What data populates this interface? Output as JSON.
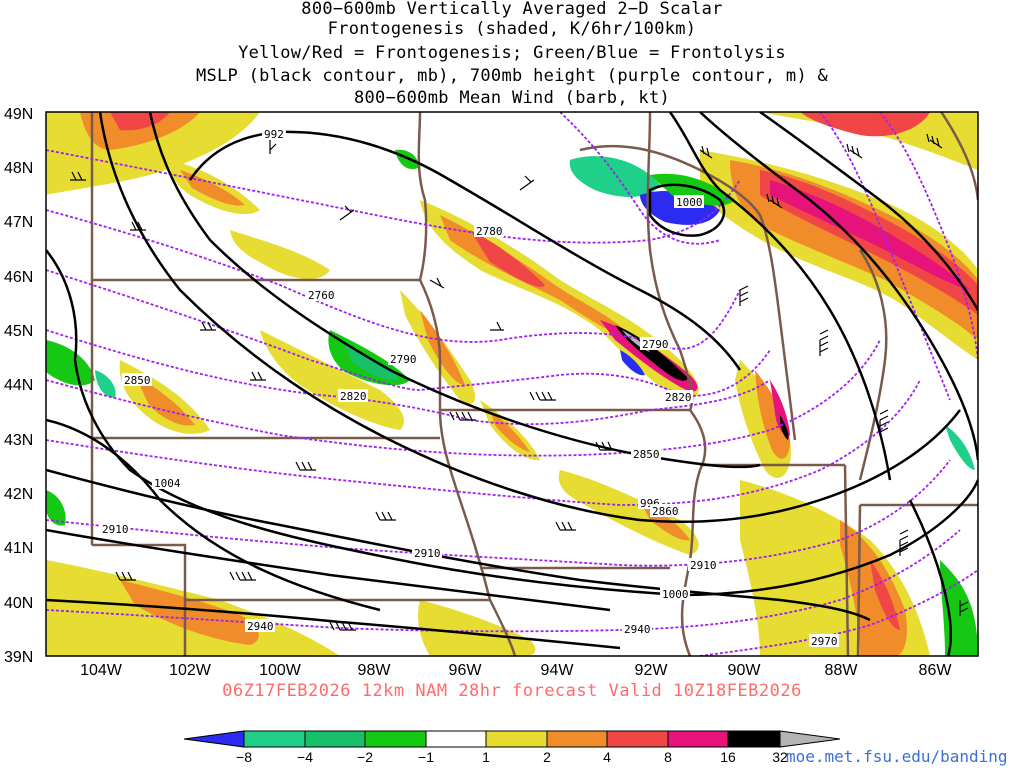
{
  "title": {
    "line1": "800−600mb Vertically Averaged 2−D Scalar",
    "line2": "Frontogenesis (shaded, K/6hr/100km)",
    "line3": "Yellow/Red = Frontogenesis;  Green/Blue = Frontolysis",
    "line4": "MSLP (black contour, mb), 700mb height (purple contour, m) &",
    "line5": "800−600mb Mean Wind (barb, kt)"
  },
  "lat_labels": [
    "49N",
    "48N",
    "47N",
    "46N",
    "45N",
    "44N",
    "43N",
    "42N",
    "41N",
    "40N",
    "39N"
  ],
  "lon_labels": [
    "104W",
    "102W",
    "100W",
    "98W",
    "96W",
    "94W",
    "92W",
    "90W",
    "88W",
    "86W"
  ],
  "valid_line": "06Z17FEB2026 12km NAM 28hr forecast Valid 10Z18FEB2026",
  "source_url": "moe.met.fsu.edu/banding",
  "colorbar": {
    "labels": [
      "−8",
      "−4",
      "−2",
      "−1",
      "1",
      "2",
      "4",
      "8",
      "16",
      "32"
    ],
    "colors": [
      "#2b2bf2",
      "#1fd08a",
      "#19c06a",
      "#14c814",
      "#ffffff",
      "#e6dc32",
      "#f08c2a",
      "#f04646",
      "#e6147a",
      "#000000",
      "#b4b4b4"
    ]
  },
  "isobar_labels": [
    "992",
    "1000",
    "1004",
    "996",
    "1000"
  ],
  "height_labels": [
    "2780",
    "2760",
    "2790",
    "2820",
    "2850",
    "2790",
    "2820",
    "2850",
    "2860",
    "2910",
    "2910",
    "2910",
    "2940",
    "2940",
    "2970"
  ],
  "colors": {
    "isobar": "#000000",
    "height": "#a020f0",
    "state_border": "#7a5a4a",
    "valid_text": "#ff6a6a",
    "url": "#3b6fd8"
  }
}
